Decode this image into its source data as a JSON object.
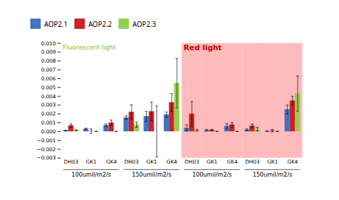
{
  "chart_data": {
    "type": "bar",
    "categories": [
      "DH03",
      "GK1",
      "GK4",
      "DH03",
      "GK1",
      "GK4",
      "DH03",
      "GK1",
      "GK4",
      "DH03",
      "GK1",
      "GK4"
    ],
    "sections": [
      "100umil/m2/s",
      "150umil/m2/s",
      "100umil/m2/s",
      "150umil/m2/s"
    ],
    "series": [
      {
        "name": "AOP2.1",
        "color": "#4472C4",
        "values": [
          0.00012,
          0.0003,
          0.00072,
          0.00158,
          0.00172,
          0.00192,
          0.0004,
          0.00015,
          0.0006,
          0.0002,
          5e-05,
          0.0025
        ],
        "errors": [
          5e-05,
          0.0001,
          0.00015,
          0.0002,
          0.00055,
          0.0003,
          0.00035,
          0.0001,
          0.0003,
          0.0001,
          5e-05,
          0.0005
        ]
      },
      {
        "name": "AOP2.2",
        "color": "#CC2222",
        "values": [
          0.00068,
          5e-05,
          0.001,
          0.00222,
          0.00228,
          0.0033,
          0.002,
          0.00018,
          0.00078,
          0.00065,
          0.0001,
          0.0035
        ],
        "errors": [
          0.0002,
          0.00025,
          0.0003,
          0.0008,
          0.00105,
          0.001,
          0.0014,
          8e-05,
          0.00025,
          0.0002,
          0.00015,
          0.0005
        ]
      },
      {
        "name": "AOP2.3",
        "color": "#92D050",
        "values": [
          0.00015,
          2e-05,
          2e-05,
          0.00078,
          2e-05,
          0.00548,
          0.00015,
          2e-05,
          2e-05,
          0.00028,
          2e-05,
          0.0043
        ],
        "errors": [
          5e-05,
          2e-05,
          2e-05,
          0.0003,
          0.0029,
          0.0028,
          0.0001,
          2e-05,
          2e-05,
          0.0002,
          2e-05,
          0.002
        ]
      }
    ],
    "ylim": [
      -0.003,
      0.01
    ],
    "yticks": [
      {
        "value": -0.003,
        "label": "−0.003"
      },
      {
        "value": -0.002,
        "label": "−0.002"
      },
      {
        "value": -0.001,
        "label": "−0.001"
      },
      {
        "value": 0,
        "label": "0.000"
      },
      {
        "value": 0.001,
        "label": "0.001"
      },
      {
        "value": 0.002,
        "label": "0.002"
      },
      {
        "value": 0.003,
        "label": "0.003"
      },
      {
        "value": 0.004,
        "label": "0.004"
      },
      {
        "value": 0.005,
        "label": "0.005"
      },
      {
        "value": 0.006,
        "label": "0.006"
      },
      {
        "value": 0.007,
        "label": "0.007"
      },
      {
        "value": 0.008,
        "label": "0.008"
      },
      {
        "value": 0.009,
        "label": "0.009"
      },
      {
        "value": 0.01,
        "label": "0.010"
      }
    ],
    "annotations": [
      {
        "text": "Fluorescent light",
        "color": "#88BB00",
        "sections": [
          0,
          1
        ]
      },
      {
        "text": "Red light",
        "color": "#CC0000",
        "sections": [
          2,
          3
        ],
        "background": "#FFBBBB"
      }
    ],
    "grid": false
  }
}
